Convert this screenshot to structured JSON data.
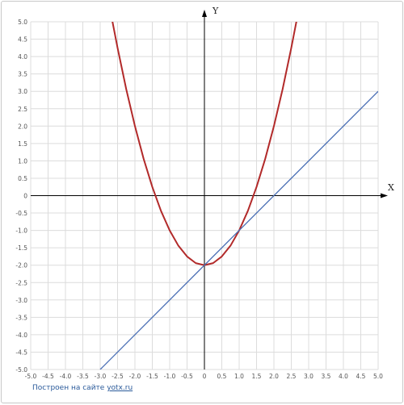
{
  "chart_data": {
    "type": "line",
    "title": "",
    "xlabel": "X",
    "ylabel": "Y",
    "xlim": [
      -5.0,
      5.0
    ],
    "ylim": [
      -5.0,
      5.0
    ],
    "grid": true,
    "x_ticks": [
      "-5.0",
      "-4.5",
      "-4.0",
      "-3.5",
      "-3.0",
      "-2.5",
      "-2.0",
      "-1.5",
      "-1.0",
      "-0.5",
      "0",
      "0.5",
      "1.0",
      "1.5",
      "2.0",
      "2.5",
      "3.0",
      "3.5",
      "4.0",
      "4.5",
      "5.0"
    ],
    "y_ticks": [
      "5.0",
      "4.5",
      "4.0",
      "3.5",
      "3.0",
      "2.5",
      "2.0",
      "1.5",
      "1.0",
      "0.5",
      "0",
      "-0.5",
      "-1.0",
      "-1.5",
      "-2.0",
      "-2.5",
      "-3.0",
      "-3.5",
      "-4.0",
      "-4.5",
      "-5.0"
    ],
    "series": [
      {
        "color": "#b22a2a",
        "x": [
          -2.65,
          -2.5,
          -2.25,
          -2.0,
          -1.75,
          -1.5,
          -1.25,
          -1.0,
          -0.75,
          -0.5,
          -0.25,
          0,
          0.25,
          0.5,
          0.75,
          1.0,
          1.25,
          1.5,
          1.75,
          2.0,
          2.25,
          2.5,
          2.65
        ],
        "y": [
          5.02,
          4.25,
          3.06,
          2.0,
          1.06,
          0.25,
          -0.44,
          -1.0,
          -1.44,
          -1.75,
          -1.94,
          -2.0,
          -1.94,
          -1.75,
          -1.44,
          -1.0,
          -0.44,
          0.25,
          1.06,
          2.0,
          3.06,
          4.25,
          5.02
        ]
      },
      {
        "color": "#4a6fb5",
        "x": [
          -3.0,
          5.0
        ],
        "y": [
          -5.0,
          3.0
        ]
      }
    ]
  },
  "footer": {
    "text": "Построен на сайте",
    "link": "yotx.ru"
  }
}
